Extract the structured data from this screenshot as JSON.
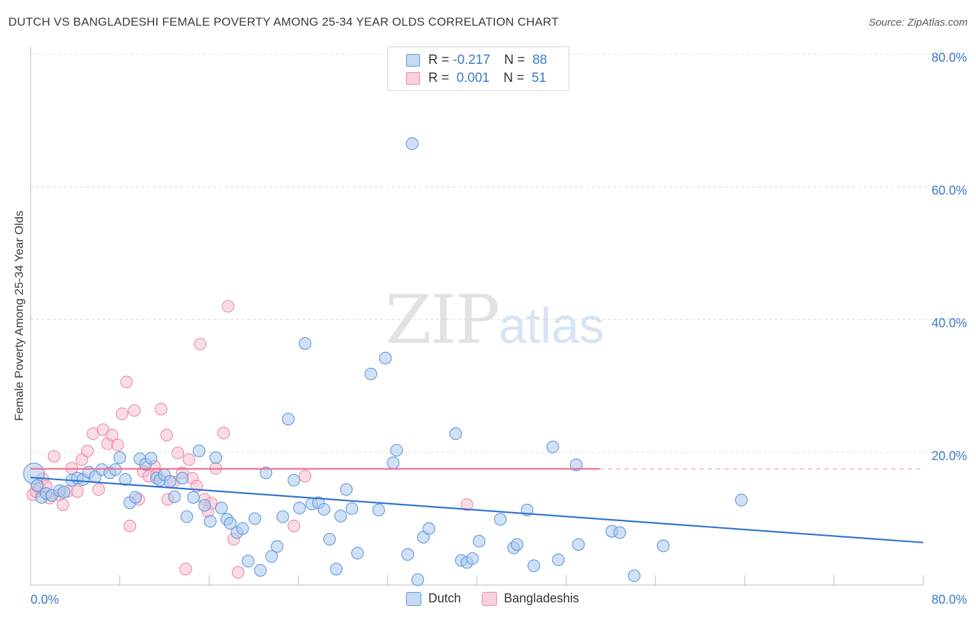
{
  "header": {
    "title": "DUTCH VS BANGLADESHI FEMALE POVERTY AMONG 25-34 YEAR OLDS CORRELATION CHART",
    "source": "Source: ZipAtlas.com"
  },
  "legend_stats": [
    {
      "r_label": "R =",
      "r_value": "-0.217",
      "n_label": "N =",
      "n_value": "88"
    },
    {
      "r_label": "R =",
      "r_value": "0.001",
      "n_label": "N =",
      "n_value": "51"
    }
  ],
  "bottom_legend": [
    "Dutch",
    "Bangladeshis"
  ],
  "watermark": {
    "zip": "ZIP",
    "atlas": "atlas"
  },
  "colors": {
    "dutch_fill": "#a9c8ef",
    "dutch_stroke": "#5d95d8",
    "dutch_line": "#2f72cc",
    "bangladeshi_fill": "#f6bfd0",
    "bangladeshi_stroke": "#e88aa6",
    "bangladeshi_line": "#ee6c93",
    "tick_label": "#3b78c8",
    "grid": "#dcdcdc"
  },
  "chart_data": {
    "type": "scatter",
    "xlabel": "",
    "ylabel": "Female Poverty Among 25-34 Year Olds",
    "xlim": [
      0,
      80
    ],
    "ylim": [
      0,
      80
    ],
    "x_tick_labels": [
      "0.0%",
      "80.0%"
    ],
    "y_ticks": [
      20,
      40,
      60,
      80
    ],
    "y_tick_labels": [
      "20.0%",
      "40.0%",
      "60.0%",
      "80.0%"
    ],
    "grid": true,
    "series": [
      {
        "name": "Dutch",
        "trend": {
          "x": [
            0,
            80
          ],
          "y": [
            16.2,
            6.4
          ]
        },
        "points": [
          [
            0.3,
            16.8
          ],
          [
            0.6,
            15.0
          ],
          [
            1.0,
            13.2
          ],
          [
            1.4,
            13.8
          ],
          [
            1.9,
            13.5
          ],
          [
            2.6,
            14.2
          ],
          [
            3.0,
            14.0
          ],
          [
            3.7,
            15.8
          ],
          [
            4.2,
            16.1
          ],
          [
            4.7,
            15.9
          ],
          [
            5.2,
            17.0
          ],
          [
            5.8,
            16.3
          ],
          [
            6.4,
            17.4
          ],
          [
            7.1,
            16.9
          ],
          [
            7.6,
            17.4
          ],
          [
            8.0,
            19.2
          ],
          [
            8.5,
            15.9
          ],
          [
            8.9,
            12.4
          ],
          [
            9.4,
            13.2
          ],
          [
            9.8,
            19.0
          ],
          [
            10.3,
            18.2
          ],
          [
            10.8,
            19.1
          ],
          [
            11.3,
            16.1
          ],
          [
            11.6,
            15.8
          ],
          [
            12.0,
            16.6
          ],
          [
            12.5,
            15.6
          ],
          [
            12.9,
            13.3
          ],
          [
            13.6,
            16.1
          ],
          [
            14.0,
            10.3
          ],
          [
            14.6,
            13.2
          ],
          [
            15.1,
            20.2
          ],
          [
            15.6,
            12.0
          ],
          [
            16.1,
            9.6
          ],
          [
            16.6,
            19.2
          ],
          [
            17.1,
            11.6
          ],
          [
            17.6,
            9.9
          ],
          [
            17.9,
            9.3
          ],
          [
            18.5,
            7.9
          ],
          [
            19.0,
            8.5
          ],
          [
            19.5,
            3.6
          ],
          [
            20.1,
            10.0
          ],
          [
            20.6,
            2.2
          ],
          [
            21.1,
            16.9
          ],
          [
            21.6,
            4.3
          ],
          [
            22.1,
            5.8
          ],
          [
            22.6,
            10.3
          ],
          [
            23.1,
            25.0
          ],
          [
            23.6,
            15.8
          ],
          [
            24.1,
            11.6
          ],
          [
            24.6,
            36.4
          ],
          [
            25.2,
            12.2
          ],
          [
            25.8,
            12.4
          ],
          [
            26.3,
            11.4
          ],
          [
            26.8,
            6.9
          ],
          [
            27.4,
            2.4
          ],
          [
            27.8,
            10.4
          ],
          [
            28.3,
            14.4
          ],
          [
            28.8,
            11.5
          ],
          [
            29.3,
            4.8
          ],
          [
            30.5,
            31.8
          ],
          [
            31.2,
            11.3
          ],
          [
            31.8,
            34.2
          ],
          [
            32.5,
            18.4
          ],
          [
            32.8,
            20.3
          ],
          [
            33.8,
            4.6
          ],
          [
            34.2,
            66.5
          ],
          [
            34.7,
            0.8
          ],
          [
            35.2,
            7.2
          ],
          [
            35.7,
            8.5
          ],
          [
            38.1,
            22.8
          ],
          [
            38.6,
            3.7
          ],
          [
            39.1,
            3.4
          ],
          [
            39.6,
            4.0
          ],
          [
            40.2,
            6.6
          ],
          [
            42.1,
            9.9
          ],
          [
            43.3,
            5.6
          ],
          [
            43.6,
            6.1
          ],
          [
            44.5,
            11.3
          ],
          [
            45.1,
            2.9
          ],
          [
            46.8,
            20.8
          ],
          [
            47.3,
            3.8
          ],
          [
            48.9,
            18.1
          ],
          [
            49.1,
            6.1
          ],
          [
            52.1,
            8.1
          ],
          [
            52.8,
            7.9
          ],
          [
            54.1,
            1.4
          ],
          [
            56.7,
            5.9
          ],
          [
            63.7,
            12.8
          ]
        ]
      },
      {
        "name": "Bangladeshis",
        "trend": {
          "x": [
            0,
            51
          ],
          "y": [
            17.5,
            17.5
          ]
        },
        "points": [
          [
            0.2,
            13.6
          ],
          [
            0.5,
            14.1
          ],
          [
            0.8,
            14.6
          ],
          [
            1.1,
            16.0
          ],
          [
            1.4,
            14.9
          ],
          [
            1.7,
            13.1
          ],
          [
            2.1,
            19.4
          ],
          [
            2.6,
            13.6
          ],
          [
            2.9,
            12.1
          ],
          [
            3.3,
            14.1
          ],
          [
            3.7,
            17.6
          ],
          [
            4.2,
            14.1
          ],
          [
            4.6,
            18.9
          ],
          [
            5.1,
            20.2
          ],
          [
            5.6,
            22.8
          ],
          [
            6.1,
            14.4
          ],
          [
            6.5,
            23.4
          ],
          [
            6.9,
            21.3
          ],
          [
            7.3,
            22.6
          ],
          [
            7.8,
            21.1
          ],
          [
            8.2,
            25.8
          ],
          [
            8.6,
            30.6
          ],
          [
            8.9,
            8.9
          ],
          [
            9.3,
            26.3
          ],
          [
            9.7,
            12.9
          ],
          [
            10.1,
            17.1
          ],
          [
            10.6,
            16.4
          ],
          [
            11.1,
            17.9
          ],
          [
            11.3,
            16.6
          ],
          [
            11.7,
            26.5
          ],
          [
            12.2,
            22.6
          ],
          [
            12.3,
            12.9
          ],
          [
            12.8,
            15.5
          ],
          [
            13.2,
            19.9
          ],
          [
            13.6,
            16.9
          ],
          [
            13.9,
            2.4
          ],
          [
            14.2,
            18.9
          ],
          [
            14.5,
            16.1
          ],
          [
            14.9,
            14.9
          ],
          [
            15.2,
            36.3
          ],
          [
            15.6,
            12.9
          ],
          [
            15.9,
            11.1
          ],
          [
            16.2,
            12.3
          ],
          [
            16.6,
            17.6
          ],
          [
            17.3,
            22.9
          ],
          [
            17.7,
            42.0
          ],
          [
            18.2,
            6.9
          ],
          [
            18.6,
            1.9
          ],
          [
            23.6,
            8.9
          ],
          [
            24.6,
            16.4
          ],
          [
            39.1,
            12.1
          ]
        ]
      }
    ]
  }
}
